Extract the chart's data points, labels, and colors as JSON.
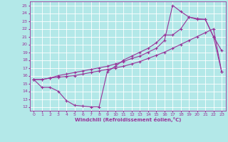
{
  "xlabel": "Windchill (Refroidissement éolien,°C)",
  "background_color": "#b3e8e8",
  "grid_color": "#ffffff",
  "line_color": "#993399",
  "xlim": [
    -0.5,
    23.5
  ],
  "ylim": [
    11.5,
    25.5
  ],
  "xticks": [
    0,
    1,
    2,
    3,
    4,
    5,
    6,
    7,
    8,
    9,
    10,
    11,
    12,
    13,
    14,
    15,
    16,
    17,
    18,
    19,
    20,
    21,
    22,
    23
  ],
  "yticks": [
    12,
    13,
    14,
    15,
    16,
    17,
    18,
    19,
    20,
    21,
    22,
    23,
    24,
    25
  ],
  "line1_x": [
    0,
    1,
    2,
    3,
    4,
    5,
    6,
    7,
    8,
    9,
    10,
    11,
    12,
    13,
    14,
    15,
    16,
    17,
    18,
    19,
    20,
    21,
    22,
    23
  ],
  "line1_y": [
    15.5,
    14.5,
    14.5,
    14.0,
    12.8,
    12.2,
    12.1,
    12.0,
    12.0,
    16.5,
    17.2,
    18.0,
    18.5,
    19.0,
    19.5,
    20.2,
    21.2,
    21.2,
    22.0,
    23.5,
    23.3,
    23.2,
    21.0,
    19.2
  ],
  "line2_x": [
    0,
    1,
    2,
    3,
    4,
    5,
    6,
    7,
    8,
    9,
    10,
    11,
    12,
    13,
    14,
    15,
    16,
    17,
    18,
    19,
    20,
    21,
    22,
    23
  ],
  "line2_y": [
    15.5,
    15.5,
    15.7,
    15.8,
    15.9,
    16.0,
    16.2,
    16.4,
    16.6,
    16.8,
    17.0,
    17.2,
    17.5,
    17.8,
    18.2,
    18.6,
    19.0,
    19.5,
    20.0,
    20.5,
    21.0,
    21.5,
    22.0,
    16.5
  ],
  "line3_x": [
    0,
    1,
    2,
    3,
    4,
    5,
    6,
    7,
    8,
    9,
    10,
    11,
    12,
    13,
    14,
    15,
    16,
    17,
    18,
    19,
    20,
    21,
    22,
    23
  ],
  "line3_y": [
    15.5,
    15.5,
    15.7,
    16.0,
    16.2,
    16.4,
    16.6,
    16.8,
    17.0,
    17.2,
    17.5,
    17.8,
    18.2,
    18.5,
    19.0,
    19.5,
    20.5,
    25.0,
    24.2,
    23.5,
    23.2,
    23.2,
    21.0,
    16.5
  ],
  "markersize": 3,
  "linewidth": 0.8
}
